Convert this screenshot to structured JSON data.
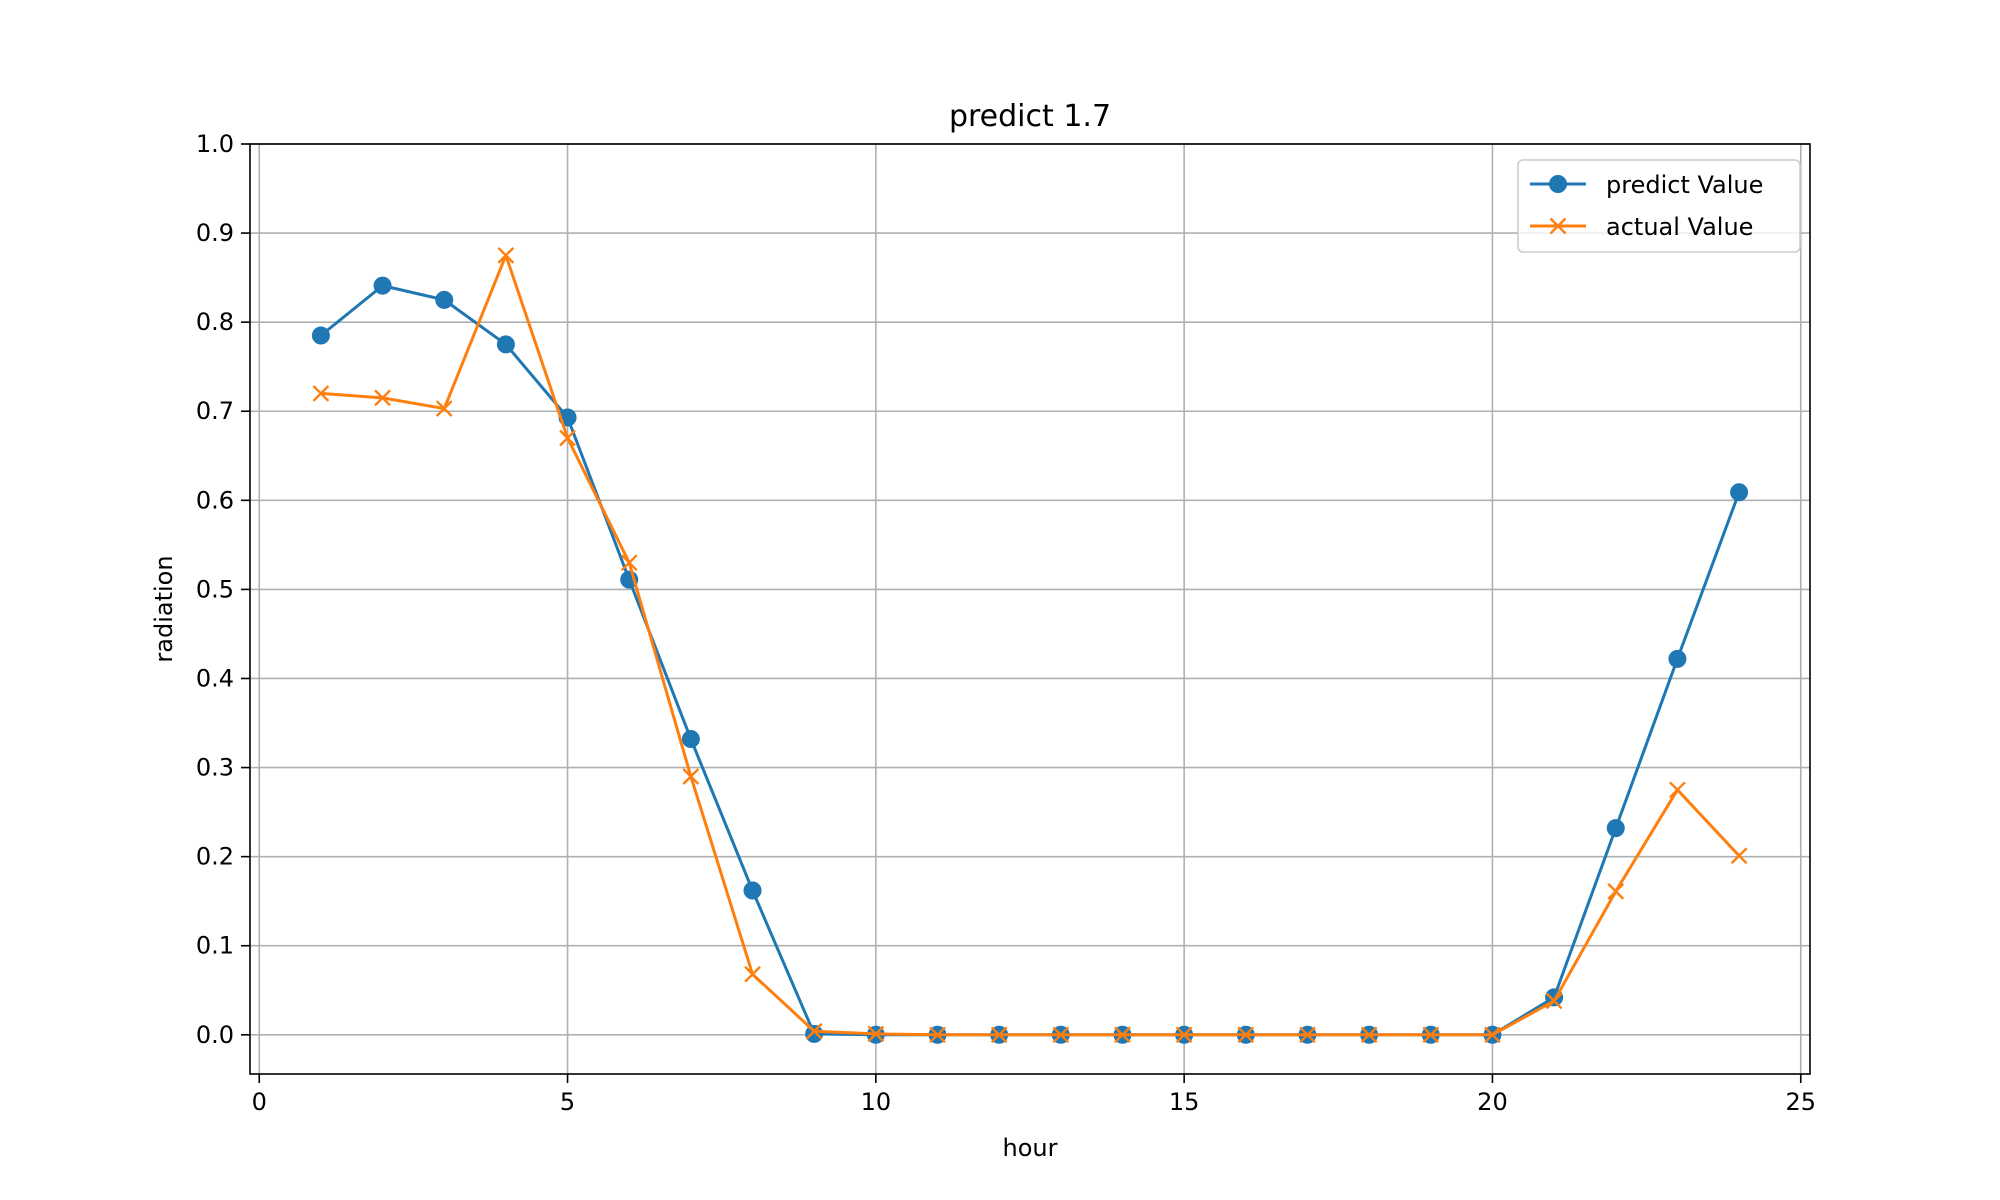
{
  "chart_data": {
    "type": "line",
    "title": "predict 1.7",
    "xlabel": "hour",
    "ylabel": "radiation",
    "xlim": [
      -0.15,
      25.15
    ],
    "ylim": [
      -0.044,
      1.0
    ],
    "xticks": [
      0,
      5,
      10,
      15,
      20,
      25
    ],
    "yticks": [
      0.0,
      0.1,
      0.2,
      0.3,
      0.4,
      0.5,
      0.6,
      0.7,
      0.8,
      0.9,
      1.0
    ],
    "xtick_labels": [
      "0",
      "5",
      "10",
      "15",
      "20",
      "25"
    ],
    "ytick_labels": [
      "0.0",
      "0.1",
      "0.2",
      "0.3",
      "0.4",
      "0.5",
      "0.6",
      "0.7",
      "0.8",
      "0.9",
      "1.0"
    ],
    "grid": true,
    "legend_position": "top-right",
    "x": [
      1,
      2,
      3,
      4,
      5,
      6,
      7,
      8,
      9,
      10,
      11,
      12,
      13,
      14,
      15,
      16,
      17,
      18,
      19,
      20,
      21,
      22,
      23,
      24
    ],
    "series": [
      {
        "name": "predict Value",
        "color": "#1f77b4",
        "marker": "circle",
        "values": [
          0.785,
          0.841,
          0.825,
          0.775,
          0.693,
          0.511,
          0.332,
          0.162,
          0.001,
          0.0,
          0.0,
          0.0,
          0.0,
          0.0,
          0.0,
          0.0,
          0.0,
          0.0,
          0.0,
          0.0,
          0.042,
          0.232,
          0.422,
          0.609
        ]
      },
      {
        "name": "actual Value",
        "color": "#ff7f0e",
        "marker": "x",
        "values": [
          0.72,
          0.715,
          0.703,
          0.875,
          0.67,
          0.53,
          0.29,
          0.068,
          0.004,
          0.001,
          0.0,
          0.0,
          0.0,
          0.0,
          0.0,
          0.0,
          0.0,
          0.0,
          0.0,
          0.0,
          0.038,
          0.161,
          0.275,
          0.201
        ]
      }
    ]
  }
}
